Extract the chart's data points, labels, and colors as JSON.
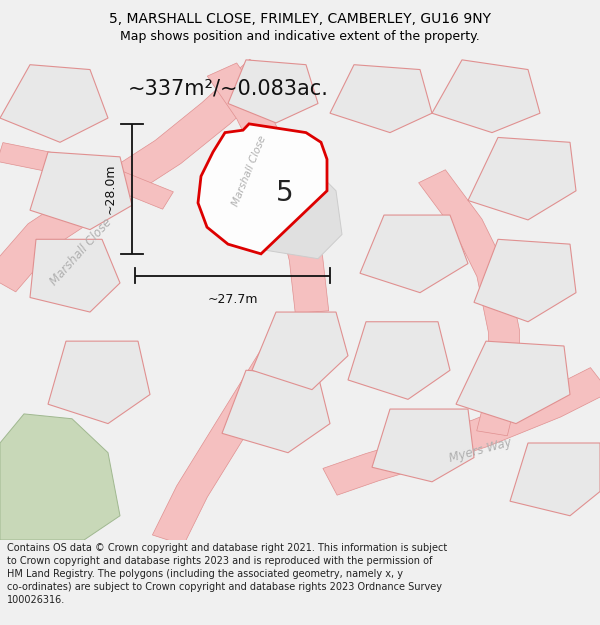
{
  "title_line1": "5, MARSHALL CLOSE, FRIMLEY, CAMBERLEY, GU16 9NY",
  "title_line2": "Map shows position and indicative extent of the property.",
  "area_text": "~337m²/~0.083ac.",
  "label_number": "5",
  "dim_height": "~28.0m",
  "dim_width": "~27.7m",
  "road_label_main": "Marshall Close",
  "road_label_top": "Marshall Close",
  "road_label_right": "Myers Way",
  "footer_text": "Contains OS data © Crown copyright and database right 2021. This information is subject to Crown copyright and database rights 2023 and is reproduced with the permission of HM Land Registry. The polygons (including the associated geometry, namely x, y co-ordinates) are subject to Crown copyright and database rights 2023 Ordnance Survey 100026316.",
  "bg_color": "#f0f0f0",
  "map_bg": "#f0f0f0",
  "plot_fill": "#e8e8e8",
  "plot_outline": "#dd0000",
  "road_color": "#f5c0c0",
  "road_outline": "#e09090",
  "green_fill": "#c8d8b8",
  "dim_color": "#111111",
  "road_text_color": "#b0b0b0",
  "figsize": [
    6.0,
    6.25
  ],
  "dpi": 100
}
